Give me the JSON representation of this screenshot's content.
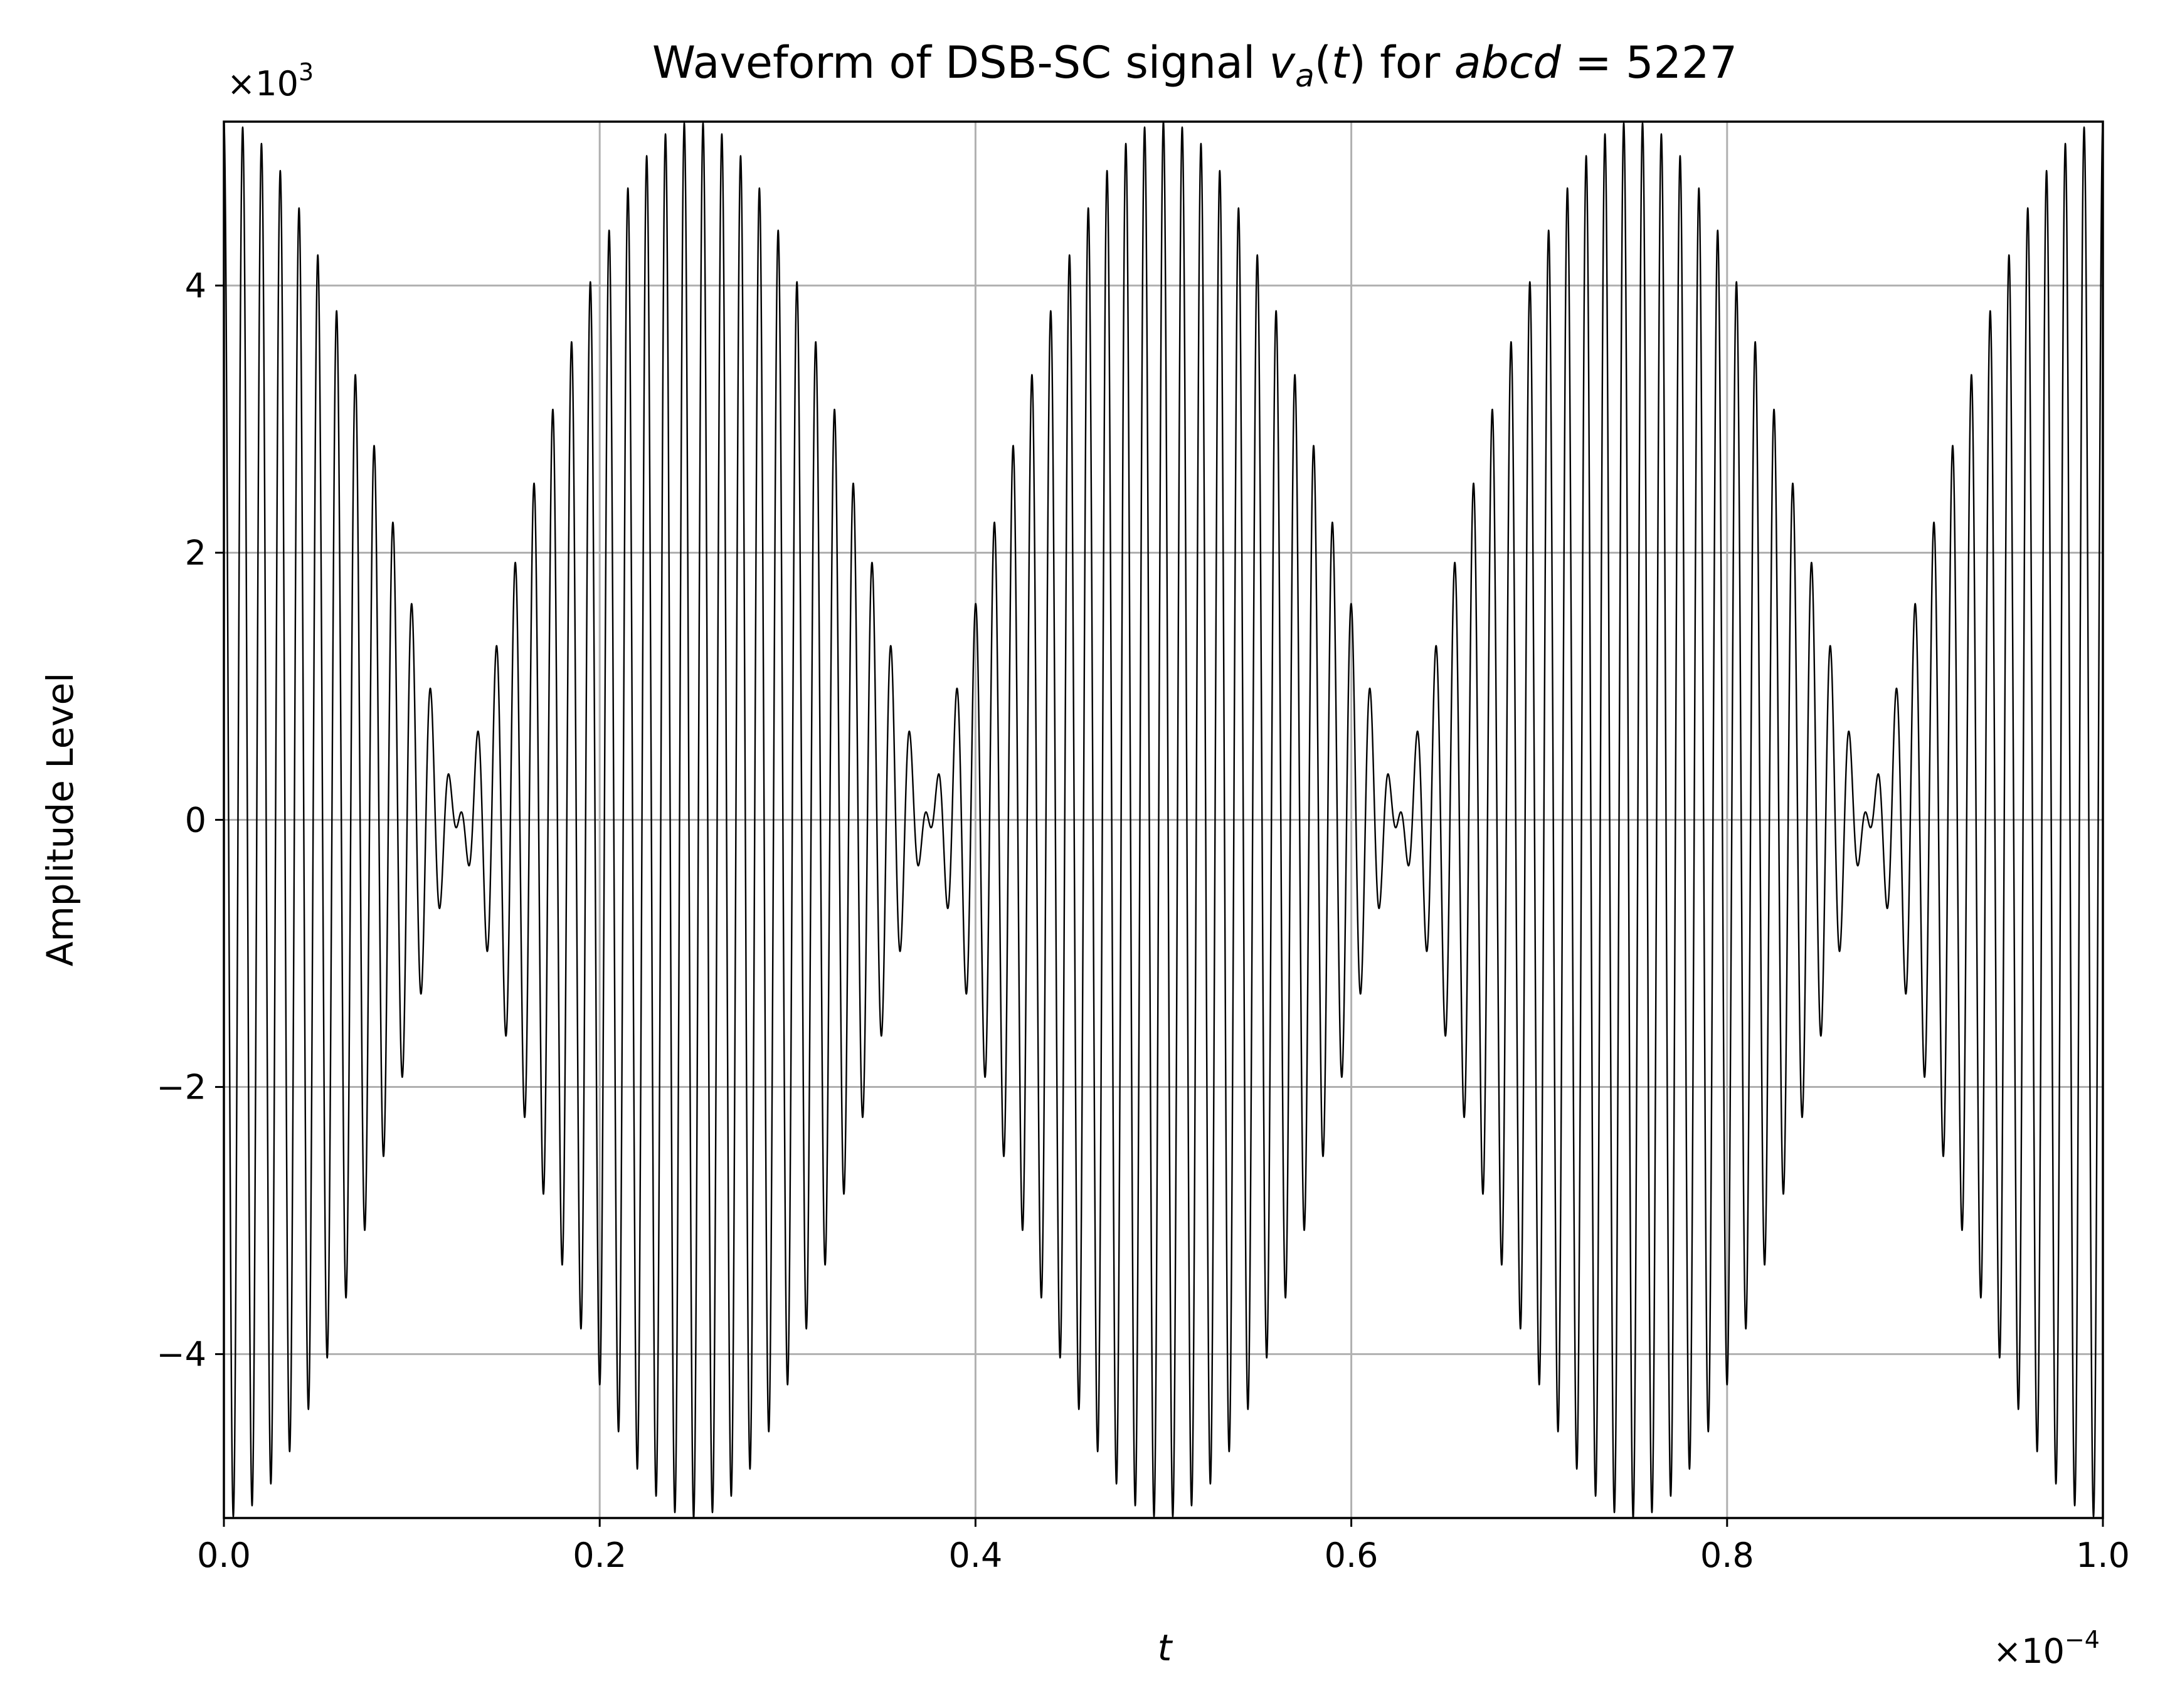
{
  "chart_data": {
    "type": "line",
    "title": {
      "pre": "Waveform of DSB-SC signal ",
      "var_main": "v",
      "var_sub": "a",
      "paren_open": "(",
      "var_arg": "t",
      "paren_close": ")",
      "mid": " for ",
      "expr_var": "abcd",
      "expr_eq": " = 5227"
    },
    "xlabel": "t",
    "ylabel": "Amplitude Level",
    "x_offset": {
      "base": "×10",
      "exp": "−4"
    },
    "y_offset": {
      "base": "×10",
      "exp": "3"
    },
    "xlim": [
      0.0,
      1.0
    ],
    "ylim": [
      -5.227,
      5.227
    ],
    "x_ticks": [
      0.0,
      0.2,
      0.4,
      0.6,
      0.8,
      1.0
    ],
    "x_tick_labels": [
      "0.0",
      "0.2",
      "0.4",
      "0.6",
      "0.8",
      "1.0"
    ],
    "y_ticks": [
      -4,
      -2,
      0,
      2,
      4
    ],
    "y_tick_labels": [
      "−4",
      "−2",
      "0",
      "2",
      "4"
    ],
    "grid": true,
    "line_color": "#000000",
    "grid_color": "#b0b0b0",
    "series": [
      {
        "function": "y = 5.227 * cos(2π·(1/0.5)·x) * cos(2π·100·x)",
        "envelope_amplitude": 5.227,
        "envelope_period": 0.5,
        "carrier_cycles_per_unit_x": 100
      }
    ]
  }
}
